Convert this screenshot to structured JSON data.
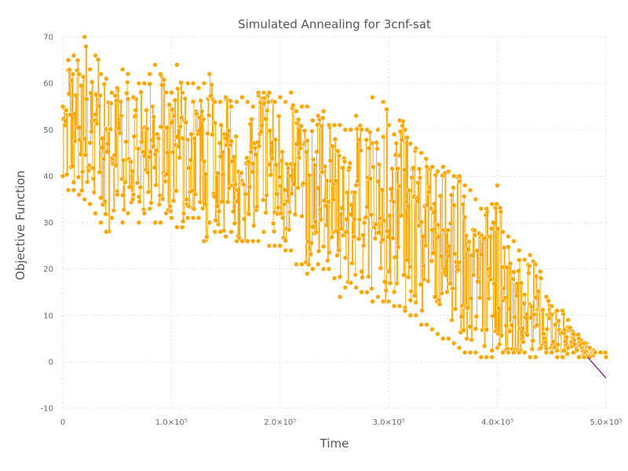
{
  "chart_data": {
    "type": "scatter",
    "title": "Simulated Annealing for 3cnf-sat",
    "xlabel": "Time",
    "ylabel": "Objective Function",
    "xlim": [
      0,
      500000
    ],
    "ylim": [
      -10,
      70
    ],
    "x_ticks": [
      {
        "value": 0,
        "label": "0"
      },
      {
        "value": 100000,
        "label": "1.0×10⁵"
      },
      {
        "value": 200000,
        "label": "2.0×10⁵"
      },
      {
        "value": 300000,
        "label": "3.0×10⁵"
      },
      {
        "value": 400000,
        "label": "4.0×10⁵"
      },
      {
        "value": 500000,
        "label": "5.0×10⁵"
      }
    ],
    "y_ticks": [
      {
        "value": -10,
        "label": "-10"
      },
      {
        "value": 0,
        "label": "0"
      },
      {
        "value": 10,
        "label": "10"
      },
      {
        "value": 20,
        "label": "20"
      },
      {
        "value": 30,
        "label": "30"
      },
      {
        "value": 40,
        "label": "40"
      },
      {
        "value": 50,
        "label": "50"
      },
      {
        "value": 60,
        "label": "60"
      },
      {
        "value": 70,
        "label": "70"
      }
    ],
    "grid": true,
    "colors": {
      "points": "#FFA500",
      "trend": "#800080"
    },
    "series": [
      {
        "marker": "circle",
        "line": "vertical-steps",
        "color": "#FFA500",
        "x": [
          0,
          5000,
          10000,
          15000,
          20000,
          25000,
          30000,
          35000,
          40000,
          45000,
          50000,
          55000,
          60000,
          65000,
          70000,
          75000,
          80000,
          85000,
          90000,
          95000,
          100000,
          105000,
          110000,
          115000,
          120000,
          125000,
          130000,
          135000,
          140000,
          145000,
          150000,
          155000,
          160000,
          165000,
          170000,
          175000,
          180000,
          185000,
          190000,
          195000,
          200000,
          205000,
          210000,
          215000,
          220000,
          225000,
          230000,
          235000,
          240000,
          245000,
          250000,
          255000,
          260000,
          265000,
          270000,
          275000,
          280000,
          285000,
          290000,
          295000,
          300000,
          305000,
          310000,
          315000,
          320000,
          325000,
          330000,
          335000,
          340000,
          345000,
          350000,
          355000,
          360000,
          365000,
          370000,
          375000,
          380000,
          385000,
          390000,
          395000,
          400000,
          405000,
          410000,
          415000,
          420000,
          425000,
          430000,
          435000,
          440000,
          445000,
          450000,
          455000,
          460000,
          465000,
          470000,
          475000,
          480000,
          485000,
          490000,
          495000,
          500000
        ],
        "y_max": [
          55,
          65,
          66,
          62,
          70,
          63,
          66,
          62,
          61,
          58,
          59,
          63,
          62,
          57,
          60,
          60,
          62,
          64,
          62,
          58,
          58,
          64,
          58,
          60,
          60,
          59,
          60,
          62,
          56,
          56,
          57,
          55,
          56,
          57,
          56,
          55,
          58,
          58,
          58,
          56,
          57,
          56,
          58,
          54,
          55,
          55,
          52,
          53,
          54,
          51,
          51,
          51,
          50,
          50,
          53,
          50,
          50,
          57,
          50,
          56,
          51,
          49,
          52,
          50,
          47,
          46,
          45,
          42,
          42,
          41,
          42,
          41,
          40,
          40,
          38,
          37,
          35,
          33,
          33,
          34,
          38,
          28,
          27,
          26,
          24,
          22,
          23,
          21,
          18,
          14,
          12,
          11,
          11,
          9,
          6,
          5,
          4,
          3,
          2,
          2,
          1
        ],
        "y_min": [
          40,
          37,
          37,
          36,
          35,
          34,
          32,
          30,
          28,
          31,
          36,
          30,
          32,
          36,
          30,
          32,
          33,
          30,
          30,
          32,
          31,
          29,
          29,
          31,
          31,
          31,
          26,
          30,
          28,
          28,
          27,
          28,
          26,
          26,
          26,
          26,
          26,
          28,
          25,
          25,
          25,
          24,
          24,
          21,
          21,
          19,
          20,
          21,
          20,
          20,
          18,
          14,
          16,
          17,
          16,
          15,
          15,
          13,
          14,
          13,
          13,
          12,
          12,
          11,
          10,
          10,
          8,
          8,
          7,
          6,
          5,
          5,
          4,
          3,
          2,
          2,
          2,
          1,
          1,
          1,
          3,
          2,
          2,
          2,
          2,
          2,
          1,
          1,
          3,
          2,
          2,
          1,
          1,
          3,
          2,
          1,
          1,
          1,
          2,
          2,
          1
        ]
      }
    ],
    "trend_line": {
      "x": [
        483000,
        500000
      ],
      "y": [
        1,
        -3.5
      ]
    }
  }
}
